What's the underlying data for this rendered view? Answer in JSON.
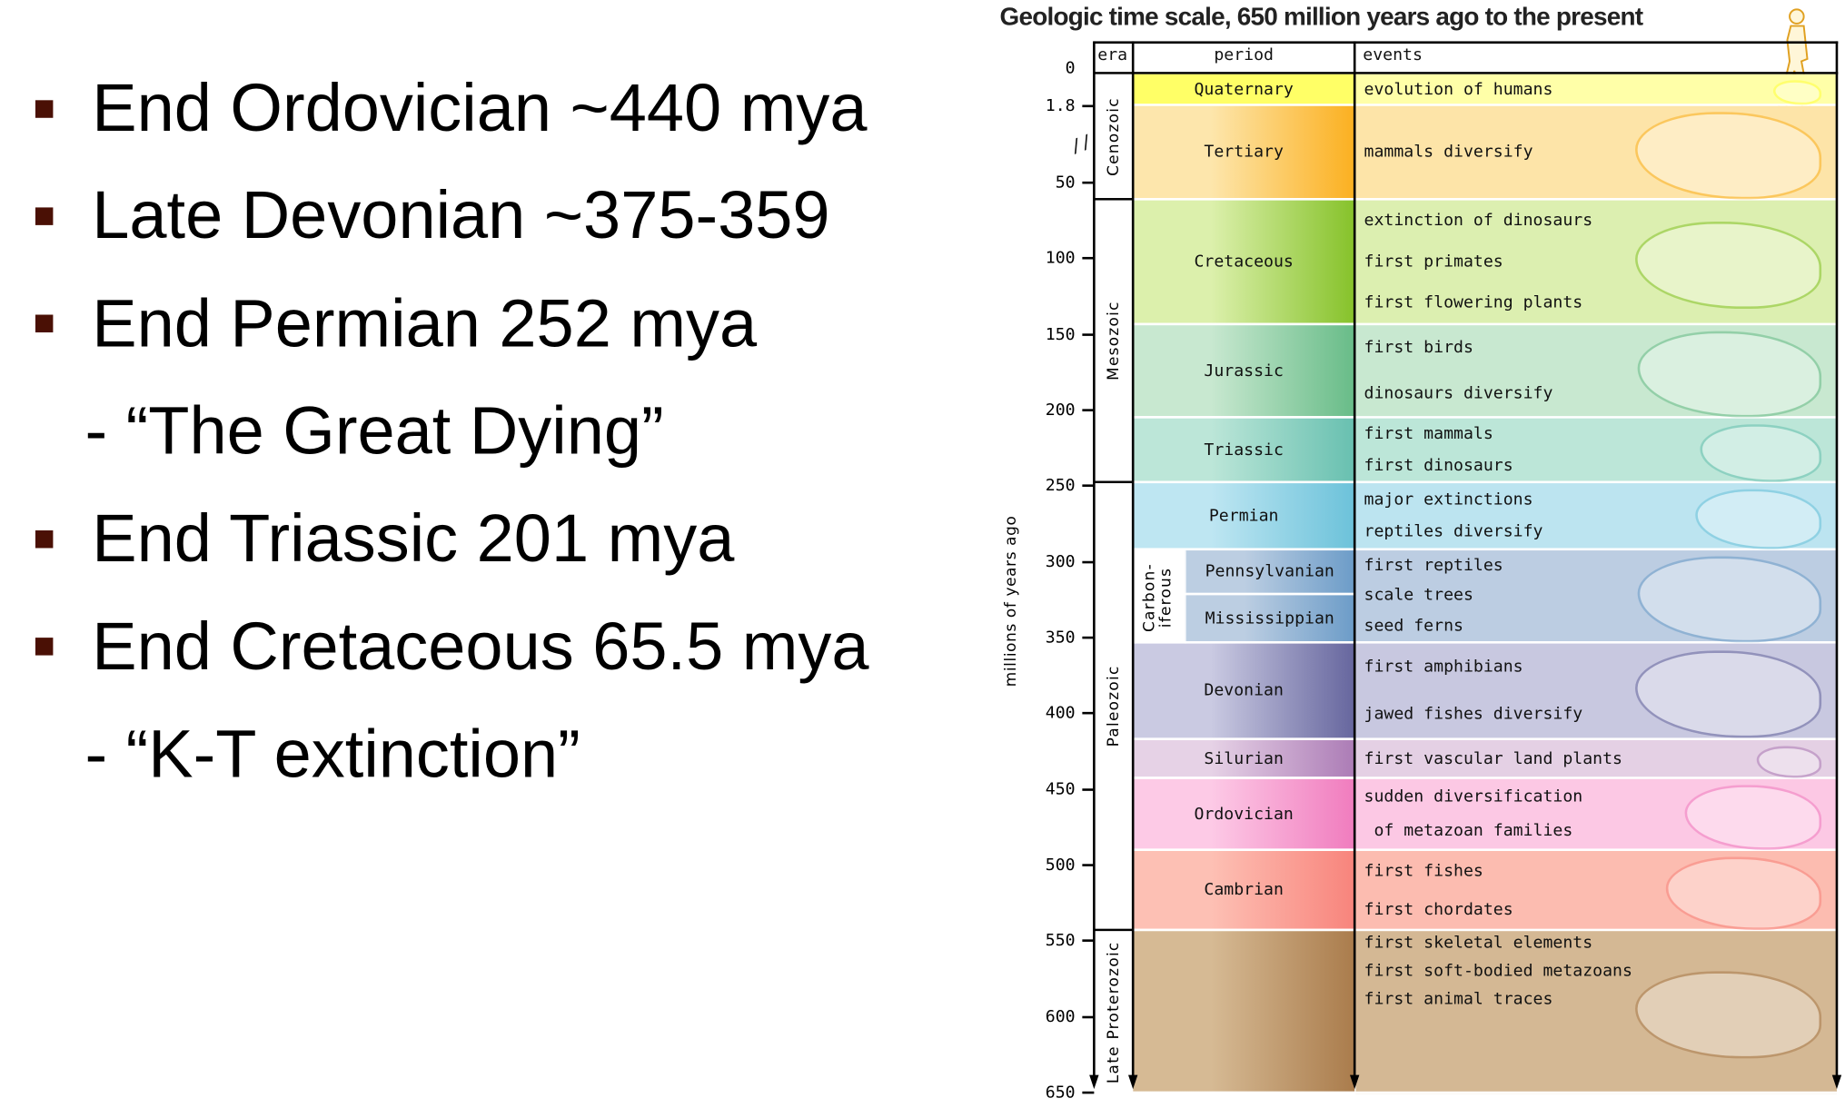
{
  "slide": {
    "items": [
      {
        "type": "bullet",
        "text": "End Ordovician ~440 mya"
      },
      {
        "type": "bullet",
        "text": "Late Devonian ~375-359"
      },
      {
        "type": "bullet",
        "text": "End Permian 252 mya"
      },
      {
        "type": "sub",
        "text": "- “The Great Dying”"
      },
      {
        "type": "bullet",
        "text": "End Triassic 201 mya"
      },
      {
        "type": "bullet",
        "text": "End Cretaceous 65.5 mya"
      },
      {
        "type": "sub",
        "text": "- “K-T extinction”"
      }
    ],
    "bullet_color": "#4a1005"
  },
  "diagram": {
    "title": "Geologic time scale, 650 million years ago to the present",
    "headers": {
      "era": "era",
      "period": "period",
      "events": "events"
    },
    "axis_label": "millions of years ago",
    "ticks": [
      "0",
      "1.8",
      "50",
      "100",
      "150",
      "200",
      "250",
      "300",
      "350",
      "400",
      "450",
      "500",
      "550",
      "600",
      "650"
    ],
    "eras": [
      {
        "name": "Cenozoic"
      },
      {
        "name": "Mesozoic"
      },
      {
        "name": "Paleozoic"
      },
      {
        "name": "Late Proterozoic"
      }
    ],
    "carboniferous_label": [
      "Carbon-",
      "iferous"
    ],
    "periods": [
      {
        "name": "Quaternary",
        "events": [
          "evolution of humans"
        ],
        "light": "#ffff66",
        "dark": "#ffff40",
        "bg": "#ffffa8"
      },
      {
        "name": "Tertiary",
        "events": [
          "mammals diversify"
        ],
        "light": "#fde6ac",
        "dark": "#fbb020",
        "bg": "#fde4a8"
      },
      {
        "name": "Cretaceous",
        "events": [
          "extinction of dinosaurs",
          "first primates",
          "first flowering plants"
        ],
        "light": "#dcf0ac",
        "dark": "#86c22a",
        "bg": "#dcefb0"
      },
      {
        "name": "Jurassic",
        "events": [
          "first birds",
          "dinosaurs diversify"
        ],
        "light": "#c8e8d0",
        "dark": "#68bc88",
        "bg": "#c8e8d0"
      },
      {
        "name": "Triassic",
        "events": [
          "first mammals",
          "first dinosaurs"
        ],
        "light": "#bce6d8",
        "dark": "#68c0b0",
        "bg": "#bce6d8"
      },
      {
        "name": "Permian",
        "events": [
          "major extinctions",
          "reptiles diversify"
        ],
        "light": "#bee6f2",
        "dark": "#6cc2da",
        "bg": "#bce4f0"
      },
      {
        "name": "Pennsylvanian",
        "events": [
          "first reptiles",
          "scale trees",
          "seed ferns"
        ],
        "light": "#bccee2",
        "dark": "#6c9cc8",
        "bg": "#bccde2"
      },
      {
        "name": "Mississippian",
        "events": [],
        "light": "#bccee2",
        "dark": "#6c9cc8",
        "bg": "#bccde2"
      },
      {
        "name": "Devonian",
        "events": [
          "first amphibians",
          "jawed fishes diversify"
        ],
        "light": "#cacae2",
        "dark": "#66669e",
        "bg": "#c8c8e0"
      },
      {
        "name": "Silurian",
        "events": [
          "first vascular land plants"
        ],
        "light": "#e6d2e6",
        "dark": "#ac7cb6",
        "bg": "#e4d0e4"
      },
      {
        "name": "Ordovician",
        "events": [
          "sudden diversification",
          " of metazoan families"
        ],
        "light": "#fdcae6",
        "dark": "#f07cbe",
        "bg": "#fcc8e4"
      },
      {
        "name": "Cambrian",
        "events": [
          "first fishes",
          "first chordates"
        ],
        "light": "#fdc0b4",
        "dark": "#f8847c",
        "bg": "#fcbcb0"
      },
      {
        "name": "",
        "events": [
          "first skeletal elements",
          "first soft-bodied metazoans",
          "first animal traces"
        ],
        "light": "#d6ba94",
        "dark": "#aa7c4c",
        "bg": "#d4b894"
      }
    ]
  }
}
